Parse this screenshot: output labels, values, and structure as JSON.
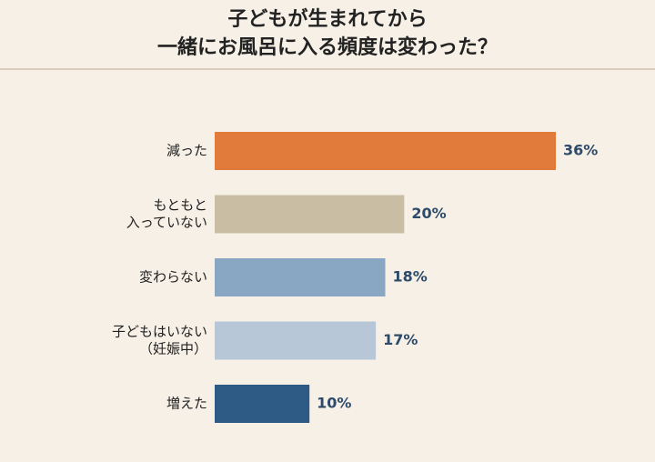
{
  "chart_data": {
    "type": "bar",
    "orientation": "horizontal",
    "title": [
      "子どもが生まれてから",
      "一緒にお風呂に入る頻度は変わった？"
    ],
    "categories": [
      [
        "減った"
      ],
      [
        "もともと",
        "入っていない"
      ],
      [
        "変わらない"
      ],
      [
        "子どもはいない",
        "（妊娠中）"
      ],
      [
        "増えた"
      ]
    ],
    "values": [
      36,
      20,
      18,
      17,
      10
    ],
    "value_labels": [
      "36%",
      "20%",
      "18%",
      "17%",
      "10%"
    ],
    "colors": [
      "#e07b3c",
      "#c9bea4",
      "#89a7c2",
      "#b8c7d8",
      "#2e5a86"
    ]
  }
}
